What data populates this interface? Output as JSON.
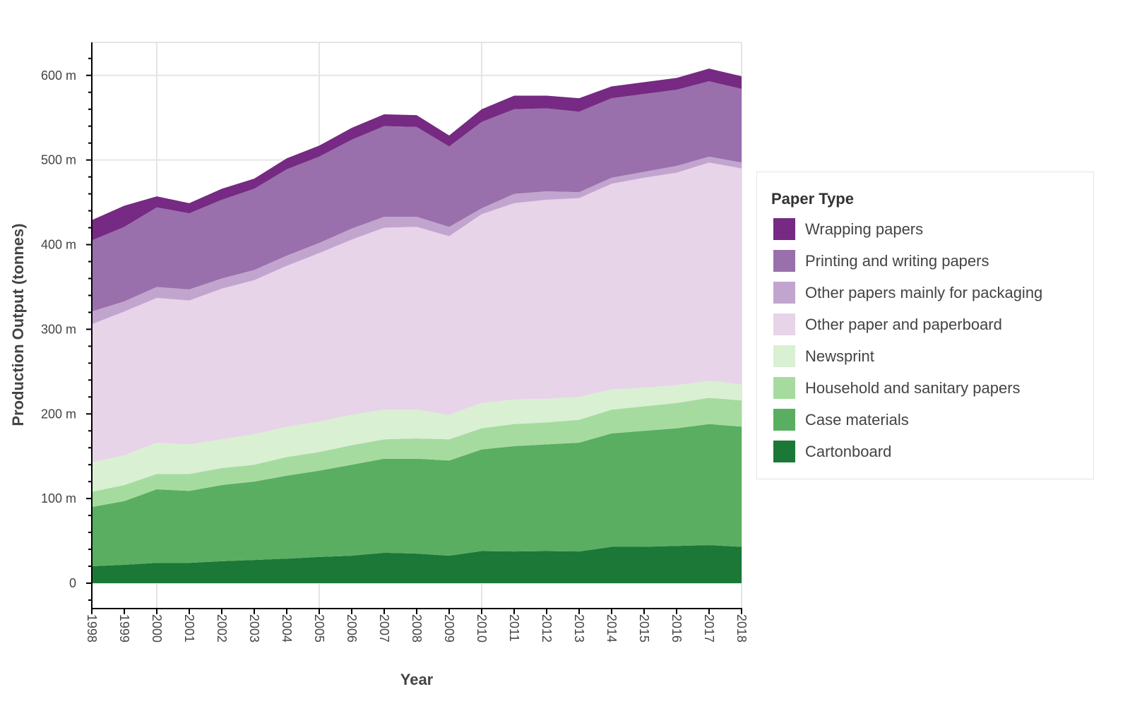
{
  "chart_data": {
    "type": "area",
    "stacked": true,
    "xlabel": "Year",
    "ylabel": "Production Output (tonnes)",
    "x": [
      1998,
      1999,
      2000,
      2001,
      2002,
      2003,
      2004,
      2005,
      2006,
      2007,
      2008,
      2009,
      2010,
      2011,
      2012,
      2013,
      2014,
      2015,
      2016,
      2017,
      2018
    ],
    "x_tick_labels": [
      "1998",
      "1999",
      "2000",
      "2001",
      "2002",
      "2003",
      "2004",
      "2005",
      "2006",
      "2007",
      "2008",
      "2009",
      "2010",
      "2011",
      "2012",
      "2013",
      "2014",
      "2015",
      "2016",
      "2017",
      "2018"
    ],
    "y_unit": "million tonnes",
    "ylim": [
      -30,
      639
    ],
    "y_ticks": [
      0,
      100,
      200,
      300,
      400,
      500,
      600
    ],
    "y_tick_labels": [
      "0",
      "100 m",
      "200 m",
      "300 m",
      "400 m",
      "500 m",
      "600 m"
    ],
    "grid": true,
    "legend": {
      "title": "Paper Type",
      "placement": "right"
    },
    "series": [
      {
        "name": "Cartonboard",
        "color": "#1b7837",
        "values": [
          20,
          21.7,
          24,
          24,
          26,
          27.5,
          29,
          31,
          32.5,
          36,
          35,
          32.5,
          38,
          37.5,
          38,
          37.5,
          43,
          43,
          44,
          45,
          43
        ]
      },
      {
        "name": "Case materials",
        "color": "#5aae61",
        "values": [
          70,
          75.3,
          87,
          85,
          90,
          92.5,
          98,
          102,
          107.5,
          111,
          112,
          112.5,
          120,
          124.5,
          126,
          128.5,
          134,
          137,
          139,
          143,
          142
        ]
      },
      {
        "name": "Household and sanitary papers",
        "color": "#a6dba0",
        "values": [
          18,
          19,
          18,
          20,
          20,
          20,
          22,
          22,
          23,
          23,
          24,
          25,
          25,
          26,
          26,
          27,
          28,
          29,
          30,
          31,
          31
        ]
      },
      {
        "name": "Newsprint",
        "color": "#d9f0d3",
        "values": [
          35,
          35,
          37,
          35,
          34,
          36,
          36,
          36,
          36,
          35,
          34,
          29,
          30,
          29,
          28,
          27,
          24,
          22,
          21,
          20,
          19
        ]
      },
      {
        "name": "Other paper and paperboard",
        "color": "#e7d4e8",
        "values": [
          163,
          170,
          171,
          170,
          178,
          182,
          190,
          199,
          207,
          215,
          216,
          211,
          223,
          232,
          235,
          235,
          243,
          248,
          251,
          258,
          255
        ]
      },
      {
        "name": "Other papers mainly for packaging",
        "color": "#c2a5cf",
        "values": [
          15,
          12,
          13,
          13,
          12,
          12,
          12,
          12,
          13,
          13,
          12,
          11,
          7,
          11,
          10,
          7,
          7,
          7,
          8,
          7,
          7
        ]
      },
      {
        "name": "Printing and writing papers",
        "color": "#9970ab",
        "values": [
          84,
          88,
          94,
          90,
          93,
          96,
          102,
          102,
          105,
          107,
          106,
          95,
          102,
          100,
          98,
          95,
          94,
          92,
          90,
          89,
          87
        ]
      },
      {
        "name": "Wrapping papers",
        "color": "#762a83",
        "values": [
          24,
          25,
          13,
          12,
          13,
          12,
          13,
          13,
          14,
          14,
          14,
          13,
          15,
          16,
          15,
          16,
          14,
          14,
          14,
          15,
          15
        ]
      }
    ]
  }
}
